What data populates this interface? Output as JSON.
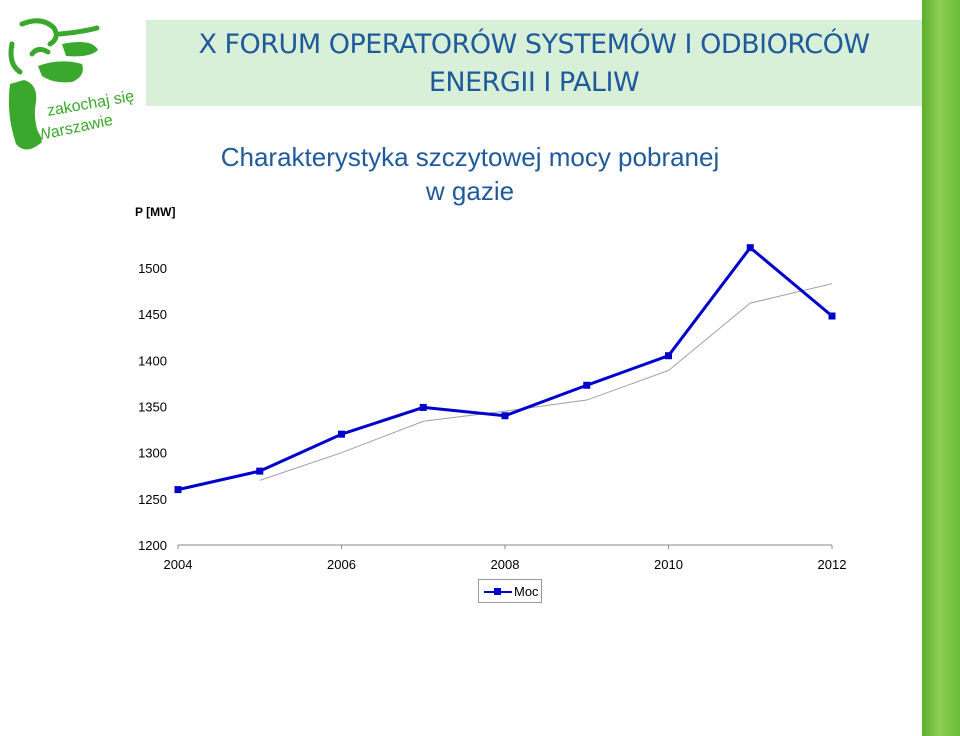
{
  "header": {
    "title_line1": "X FORUM OPERATORÓW SYSTEMÓW I ODBIORCÓW",
    "title_line2": "ENERGII I PALIW"
  },
  "logo": {
    "text": "zakochaj się w Warszawie",
    "icon": "warsaw-promo-logo-icon",
    "color": "#3aa82c"
  },
  "colors": {
    "header_text": "#1f5a9c",
    "header_band": "#d8f0d8",
    "series": "#0000cc",
    "trend": "#a0a0a0",
    "side_bar": "#6cbc3a"
  },
  "chart_data": {
    "type": "line",
    "title_line1": "Charakterystyka szczytowej mocy pobranej",
    "title_line2": "w gazie",
    "ylabel": "P [MW]",
    "xlabel": "",
    "xlim": [
      2004,
      2012
    ],
    "ylim": [
      1200,
      1500
    ],
    "x_ticks": [
      "2004",
      "2006",
      "2008",
      "2010",
      "2012"
    ],
    "y_ticks": [
      "1500",
      "1450",
      "1400",
      "1350",
      "1300",
      "1250",
      "1200"
    ],
    "grid": false,
    "legend_position": "bottom",
    "series": [
      {
        "name": "Moc",
        "x": [
          2004,
          2005,
          2006,
          2007,
          2008,
          2009,
          2010,
          2011,
          2012
        ],
        "values": [
          1260,
          1280,
          1320,
          1349,
          1340,
          1373,
          1405,
          1522,
          1448
        ]
      }
    ],
    "trendline": {
      "x": [
        2005,
        2006,
        2007,
        2008,
        2009,
        2010,
        2011,
        2012
      ],
      "values": [
        1270,
        1300,
        1334,
        1345,
        1357,
        1389,
        1462,
        1483
      ]
    }
  }
}
